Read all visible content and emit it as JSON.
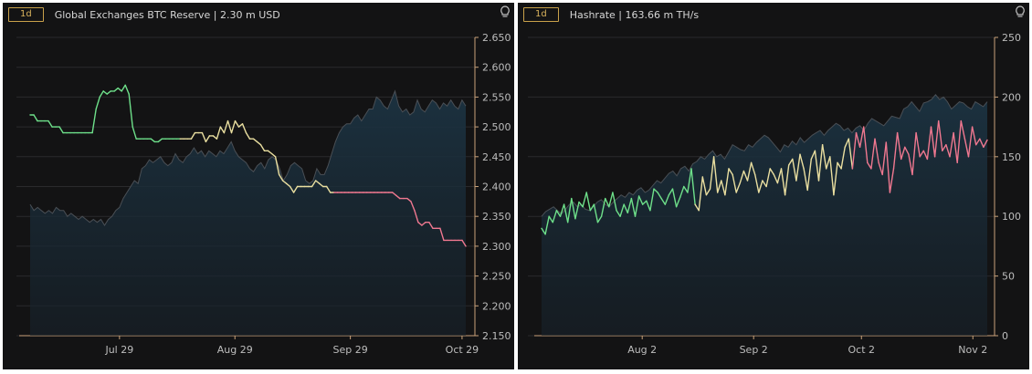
{
  "colors": {
    "background": "#131314",
    "axis": "#c9a27a",
    "grid": "#2a2a2c",
    "reserve_area_fill": "#1a2a36",
    "reserve_area_line": "#4a4f55",
    "green": "#6ee08a",
    "yellow": "#eadfa0",
    "pink": "#f07890"
  },
  "chart_data": [
    {
      "type": "line",
      "timeframe": "1d",
      "title": "Global Exchanges BTC Reserve | 2.30 m USD",
      "icon": "lightbulb-icon",
      "xlabel": "",
      "ylabel": "",
      "x_ticks": [
        "Jul 29",
        "Aug 29",
        "Sep 29",
        "Oct 29"
      ],
      "y_ticks": [
        "2.650",
        "2.600",
        "2.550",
        "2.500",
        "2.450",
        "2.400",
        "2.350",
        "2.300",
        "2.250",
        "2.200",
        "2.150"
      ],
      "ylim": [
        2.15,
        2.65
      ],
      "grid": true,
      "series": [
        {
          "style": "area",
          "start": "2022-07-05",
          "values": [
            2.37,
            2.36,
            2.365,
            2.36,
            2.355,
            2.36,
            2.355,
            2.365,
            2.36,
            2.36,
            2.35,
            2.355,
            2.35,
            2.345,
            2.35,
            2.345,
            2.34,
            2.345,
            2.34,
            2.345,
            2.335,
            2.345,
            2.35,
            2.36,
            2.365,
            2.38,
            2.39,
            2.4,
            2.41,
            2.405,
            2.43,
            2.435,
            2.445,
            2.44,
            2.445,
            2.45,
            2.44,
            2.435,
            2.44,
            2.455,
            2.445,
            2.44,
            2.45,
            2.455,
            2.465,
            2.455,
            2.46,
            2.45,
            2.46,
            2.455,
            2.45,
            2.46,
            2.455,
            2.465,
            2.475,
            2.46,
            2.45,
            2.445,
            2.44,
            2.43,
            2.425,
            2.435,
            2.44,
            2.43,
            2.445,
            2.45,
            2.445,
            2.43,
            2.41,
            2.42,
            2.435,
            2.44,
            2.435,
            2.43,
            2.41,
            2.405,
            2.41,
            2.43,
            2.42,
            2.42,
            2.435,
            2.455,
            2.475,
            2.49,
            2.5,
            2.505,
            2.505,
            2.515,
            2.52,
            2.51,
            2.52,
            2.53,
            2.53,
            2.55,
            2.545,
            2.535,
            2.53,
            2.545,
            2.56,
            2.535,
            2.525,
            2.53,
            2.52,
            2.525,
            2.545,
            2.53,
            2.525,
            2.535,
            2.545,
            2.54,
            2.53,
            2.54,
            2.535,
            2.545,
            2.535,
            2.53,
            2.545,
            2.535
          ]
        },
        {
          "style": "line",
          "start": "2022-07-05",
          "values": [
            2.52,
            2.52,
            2.51,
            2.51,
            2.51,
            2.51,
            2.5,
            2.5,
            2.5,
            2.49,
            2.49,
            2.49,
            2.49,
            2.49,
            2.49,
            2.49,
            2.49,
            2.49,
            2.53,
            2.55,
            2.56,
            2.555,
            2.56,
            2.56,
            2.565,
            2.56,
            2.57,
            2.555,
            2.5,
            2.48,
            2.48,
            2.48,
            2.48,
            2.48,
            2.475,
            2.475,
            2.48,
            2.48,
            2.48,
            2.48,
            2.48,
            2.48,
            2.48,
            2.48,
            2.48,
            2.49,
            2.49,
            2.49,
            2.475,
            2.485,
            2.485,
            2.48,
            2.5,
            2.49,
            2.51,
            2.49,
            2.51,
            2.5,
            2.505,
            2.49,
            2.48,
            2.48,
            2.475,
            2.47,
            2.46,
            2.46,
            2.455,
            2.45,
            2.42,
            2.41,
            2.405,
            2.4,
            2.39,
            2.4,
            2.4,
            2.4,
            2.4,
            2.4,
            2.41,
            2.405,
            2.4,
            2.4,
            2.39,
            2.39,
            2.39,
            2.39,
            2.39,
            2.39,
            2.39,
            2.39,
            2.39,
            2.39,
            2.39,
            2.39,
            2.39,
            2.39,
            2.39,
            2.39,
            2.39,
            2.39,
            2.385,
            2.38,
            2.38,
            2.38,
            2.375,
            2.36,
            2.34,
            2.335,
            2.34,
            2.34,
            2.33,
            2.33,
            2.33,
            2.31,
            2.31,
            2.31,
            2.31,
            2.31,
            2.31,
            2.3
          ]
        }
      ]
    },
    {
      "type": "line",
      "timeframe": "1d",
      "title": "Hashrate | 163.66 m TH/s",
      "icon": "lightbulb-icon",
      "xlabel": "",
      "ylabel": "",
      "x_ticks": [
        "Aug 2",
        "Sep 2",
        "Oct 2",
        "Nov 2"
      ],
      "y_ticks": [
        "250",
        "200",
        "150",
        "100",
        "50",
        "0"
      ],
      "ylim": [
        0,
        250
      ],
      "grid": true,
      "series": [
        {
          "style": "area",
          "start": "2022-07-05",
          "values": [
            100,
            104,
            106,
            108,
            105,
            102,
            106,
            110,
            112,
            108,
            110,
            106,
            105,
            108,
            112,
            114,
            110,
            108,
            112,
            115,
            118,
            116,
            120,
            118,
            122,
            124,
            120,
            122,
            126,
            130,
            128,
            132,
            136,
            138,
            134,
            140,
            142,
            138,
            144,
            146,
            150,
            148,
            152,
            155,
            150,
            152,
            148,
            154,
            160,
            158,
            156,
            155,
            160,
            158,
            162,
            165,
            168,
            166,
            162,
            158,
            154,
            160,
            158,
            163,
            160,
            166,
            162,
            165,
            168,
            170,
            172,
            168,
            172,
            175,
            178,
            176,
            172,
            174,
            170,
            174,
            176,
            172,
            178,
            182,
            180,
            178,
            176,
            180,
            184,
            183,
            182,
            190,
            192,
            196,
            192,
            188,
            195,
            196,
            198,
            202,
            198,
            200,
            196,
            190,
            193,
            196,
            195,
            192,
            190,
            196,
            194,
            192,
            196
          ]
        },
        {
          "style": "line",
          "start": "2022-07-05",
          "values": [
            90,
            85,
            100,
            95,
            105,
            100,
            110,
            95,
            115,
            98,
            112,
            108,
            120,
            105,
            110,
            95,
            100,
            115,
            108,
            120,
            105,
            100,
            110,
            103,
            115,
            100,
            117,
            110,
            113,
            105,
            123,
            120,
            115,
            110,
            118,
            123,
            108,
            116,
            125,
            120,
            140,
            110,
            105,
            133,
            118,
            123,
            150,
            120,
            130,
            118,
            140,
            135,
            120,
            128,
            138,
            130,
            145,
            135,
            120,
            130,
            125,
            140,
            135,
            128,
            140,
            118,
            143,
            148,
            130,
            152,
            140,
            122,
            148,
            155,
            130,
            160,
            140,
            150,
            118,
            145,
            140,
            158,
            165,
            140,
            170,
            158,
            175,
            145,
            140,
            165,
            145,
            135,
            162,
            120,
            140,
            170,
            148,
            158,
            152,
            135,
            170,
            150,
            155,
            148,
            175,
            150,
            180,
            155,
            160,
            150,
            170,
            145,
            180,
            165,
            150,
            175,
            160,
            165,
            158,
            164
          ]
        }
      ]
    }
  ]
}
